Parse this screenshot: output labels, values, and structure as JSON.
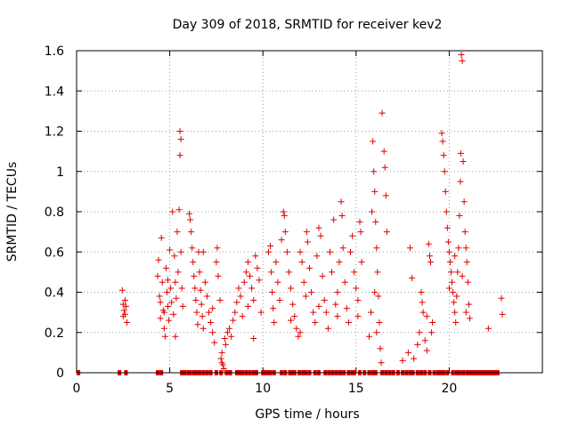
{
  "chart_data": {
    "type": "scatter",
    "title": "Day 309 of 2018, SRMTID for receiver kev2",
    "xlabel": "GPS time / hours",
    "ylabel": "SRMTID / TECUs",
    "xlim": [
      0,
      25
    ],
    "ylim": [
      0,
      1.6
    ],
    "xticks": [
      0,
      5,
      10,
      15,
      20
    ],
    "xtick_labels": [
      "0",
      "5",
      "10",
      "15",
      "20"
    ],
    "yticks": [
      0,
      0.2,
      0.4,
      0.6,
      0.8,
      1,
      1.2,
      1.4,
      1.6
    ],
    "ytick_labels": [
      "0",
      "0.2",
      "0.4",
      "0.6",
      "0.8",
      "1",
      "1.2",
      "1.4",
      "1.6"
    ],
    "grid": true,
    "marker": "+",
    "color": "#e00000",
    "series": [
      {
        "name": "SRMTID",
        "points": [
          [
            2.45,
            0.41
          ],
          [
            2.5,
            0.34
          ],
          [
            2.55,
            0.31
          ],
          [
            2.6,
            0.29
          ],
          [
            2.65,
            0.33
          ],
          [
            2.7,
            0.25
          ],
          [
            2.5,
            0.28
          ],
          [
            2.6,
            0.36
          ],
          [
            4.35,
            0.48
          ],
          [
            4.4,
            0.56
          ],
          [
            4.45,
            0.38
          ],
          [
            4.5,
            0.27
          ],
          [
            4.55,
            0.67
          ],
          [
            4.6,
            0.45
          ],
          [
            4.65,
            0.31
          ],
          [
            4.7,
            0.22
          ],
          [
            4.75,
            0.18
          ],
          [
            4.8,
            0.52
          ],
          [
            4.85,
            0.4
          ],
          [
            4.9,
            0.33
          ],
          [
            4.95,
            0.26
          ],
          [
            5.0,
            0.61
          ],
          [
            5.05,
            0.42
          ],
          [
            5.1,
            0.35
          ],
          [
            5.15,
            0.8
          ],
          [
            5.2,
            0.29
          ],
          [
            5.25,
            0.58
          ],
          [
            5.3,
            0.45
          ],
          [
            5.35,
            0.37
          ],
          [
            5.4,
            0.7
          ],
          [
            5.45,
            0.5
          ],
          [
            5.5,
            0.81
          ],
          [
            5.55,
            1.2
          ],
          [
            5.6,
            1.16
          ],
          [
            5.55,
            1.08
          ],
          [
            5.65,
            0.42
          ],
          [
            5.7,
            0.33
          ],
          [
            5.6,
            0.6
          ],
          [
            4.5,
            0.35
          ],
          [
            4.7,
            0.3
          ],
          [
            4.9,
            0.46
          ],
          [
            5.3,
            0.18
          ],
          [
            6.05,
            0.79
          ],
          [
            6.1,
            0.76
          ],
          [
            6.15,
            0.7
          ],
          [
            6.2,
            0.62
          ],
          [
            6.25,
            0.55
          ],
          [
            6.3,
            0.48
          ],
          [
            6.35,
            0.42
          ],
          [
            6.4,
            0.36
          ],
          [
            6.45,
            0.3
          ],
          [
            6.5,
            0.24
          ],
          [
            6.55,
            0.6
          ],
          [
            6.6,
            0.5
          ],
          [
            6.65,
            0.41
          ],
          [
            6.7,
            0.34
          ],
          [
            6.75,
            0.28
          ],
          [
            6.8,
            0.22
          ],
          [
            6.9,
            0.45
          ],
          [
            7.0,
            0.38
          ],
          [
            7.1,
            0.3
          ],
          [
            7.2,
            0.25
          ],
          [
            7.3,
            0.2
          ],
          [
            7.4,
            0.15
          ],
          [
            7.5,
            0.55
          ],
          [
            7.55,
            0.62
          ],
          [
            7.6,
            0.48
          ],
          [
            7.7,
            0.36
          ],
          [
            7.75,
            0.07
          ],
          [
            7.8,
            0.05
          ],
          [
            7.85,
            0.04
          ],
          [
            7.9,
            0.02
          ],
          [
            7.8,
            0.1
          ],
          [
            7.95,
            0.17
          ],
          [
            8.0,
            0.14
          ],
          [
            8.1,
            0.2
          ],
          [
            8.2,
            0.22
          ],
          [
            8.3,
            0.18
          ],
          [
            8.4,
            0.26
          ],
          [
            8.5,
            0.3
          ],
          [
            8.6,
            0.35
          ],
          [
            8.7,
            0.42
          ],
          [
            8.8,
            0.38
          ],
          [
            8.9,
            0.28
          ],
          [
            9.0,
            0.45
          ],
          [
            9.1,
            0.5
          ],
          [
            9.2,
            0.55
          ],
          [
            9.3,
            0.48
          ],
          [
            9.4,
            0.42
          ],
          [
            9.5,
            0.36
          ],
          [
            9.6,
            0.58
          ],
          [
            9.7,
            0.52
          ],
          [
            9.8,
            0.46
          ],
          [
            9.9,
            0.3
          ],
          [
            9.5,
            0.17
          ],
          [
            9.2,
            0.33
          ],
          [
            6.8,
            0.6
          ],
          [
            7.3,
            0.32
          ],
          [
            10.3,
            0.6
          ],
          [
            10.4,
            0.63
          ],
          [
            10.45,
            0.5
          ],
          [
            10.5,
            0.4
          ],
          [
            10.55,
            0.32
          ],
          [
            10.6,
            0.25
          ],
          [
            10.7,
            0.55
          ],
          [
            10.8,
            0.45
          ],
          [
            10.9,
            0.36
          ],
          [
            11.0,
            0.66
          ],
          [
            11.1,
            0.8
          ],
          [
            11.15,
            0.78
          ],
          [
            11.2,
            0.7
          ],
          [
            11.3,
            0.6
          ],
          [
            11.4,
            0.5
          ],
          [
            11.5,
            0.42
          ],
          [
            11.6,
            0.34
          ],
          [
            11.7,
            0.28
          ],
          [
            11.8,
            0.22
          ],
          [
            11.9,
            0.18
          ],
          [
            12.0,
            0.6
          ],
          [
            12.1,
            0.55
          ],
          [
            12.2,
            0.45
          ],
          [
            12.3,
            0.38
          ],
          [
            12.35,
            0.7
          ],
          [
            12.4,
            0.65
          ],
          [
            12.5,
            0.52
          ],
          [
            12.6,
            0.4
          ],
          [
            12.7,
            0.3
          ],
          [
            12.8,
            0.25
          ],
          [
            12.9,
            0.58
          ],
          [
            13.0,
            0.72
          ],
          [
            13.1,
            0.68
          ],
          [
            13.2,
            0.48
          ],
          [
            13.3,
            0.36
          ],
          [
            13.4,
            0.3
          ],
          [
            13.5,
            0.22
          ],
          [
            13.6,
            0.6
          ],
          [
            13.7,
            0.5
          ],
          [
            13.8,
            0.76
          ],
          [
            13.9,
            0.34
          ],
          [
            14.0,
            0.28
          ],
          [
            14.1,
            0.55
          ],
          [
            14.2,
            0.85
          ],
          [
            14.25,
            0.78
          ],
          [
            14.3,
            0.62
          ],
          [
            14.4,
            0.45
          ],
          [
            14.5,
            0.32
          ],
          [
            14.6,
            0.25
          ],
          [
            14.7,
            0.6
          ],
          [
            14.8,
            0.68
          ],
          [
            14.9,
            0.5
          ],
          [
            15.0,
            0.42
          ],
          [
            15.1,
            0.36
          ],
          [
            15.2,
            0.75
          ],
          [
            15.25,
            0.7
          ],
          [
            15.3,
            0.55
          ],
          [
            11.5,
            0.26
          ],
          [
            12.0,
            0.2
          ],
          [
            13.0,
            0.33
          ],
          [
            14.0,
            0.4
          ],
          [
            15.1,
            0.28
          ],
          [
            15.7,
            0.18
          ],
          [
            15.8,
            0.3
          ],
          [
            15.85,
            0.8
          ],
          [
            15.9,
            1.15
          ],
          [
            15.95,
            1.0
          ],
          [
            16.0,
            0.9
          ],
          [
            16.05,
            0.75
          ],
          [
            16.1,
            0.62
          ],
          [
            16.15,
            0.5
          ],
          [
            16.2,
            0.38
          ],
          [
            16.25,
            0.25
          ],
          [
            16.3,
            0.12
          ],
          [
            16.35,
            0.05
          ],
          [
            16.4,
            1.29
          ],
          [
            16.5,
            1.1
          ],
          [
            16.55,
            1.02
          ],
          [
            16.6,
            0.88
          ],
          [
            16.65,
            0.7
          ],
          [
            16.0,
            0.4
          ],
          [
            16.1,
            0.2
          ],
          [
            17.5,
            0.06
          ],
          [
            17.8,
            0.1
          ],
          [
            17.9,
            0.62
          ],
          [
            18.0,
            0.47
          ],
          [
            18.1,
            0.07
          ],
          [
            18.3,
            0.14
          ],
          [
            18.4,
            0.2
          ],
          [
            18.5,
            0.4
          ],
          [
            18.55,
            0.35
          ],
          [
            18.6,
            0.3
          ],
          [
            18.7,
            0.16
          ],
          [
            18.8,
            0.28
          ],
          [
            18.9,
            0.64
          ],
          [
            18.95,
            0.58
          ],
          [
            19.0,
            0.55
          ],
          [
            19.05,
            0.2
          ],
          [
            19.1,
            0.25
          ],
          [
            18.8,
            0.11
          ],
          [
            19.6,
            1.19
          ],
          [
            19.65,
            1.15
          ],
          [
            19.7,
            1.08
          ],
          [
            19.75,
            1.0
          ],
          [
            19.8,
            0.9
          ],
          [
            19.85,
            0.8
          ],
          [
            19.9,
            0.72
          ],
          [
            19.95,
            0.65
          ],
          [
            20.0,
            0.6
          ],
          [
            20.05,
            0.55
          ],
          [
            20.1,
            0.5
          ],
          [
            20.15,
            0.45
          ],
          [
            20.2,
            0.4
          ],
          [
            20.25,
            0.35
          ],
          [
            20.3,
            0.3
          ],
          [
            20.35,
            0.25
          ],
          [
            20.4,
            0.38
          ],
          [
            20.45,
            0.5
          ],
          [
            20.5,
            0.62
          ],
          [
            20.55,
            0.78
          ],
          [
            20.6,
            0.95
          ],
          [
            20.62,
            1.09
          ],
          [
            20.65,
            1.58
          ],
          [
            20.7,
            1.55
          ],
          [
            20.75,
            1.05
          ],
          [
            20.8,
            0.85
          ],
          [
            20.85,
            0.7
          ],
          [
            20.9,
            0.62
          ],
          [
            20.95,
            0.55
          ],
          [
            21.0,
            0.45
          ],
          [
            21.05,
            0.34
          ],
          [
            21.1,
            0.27
          ],
          [
            20.0,
            0.42
          ],
          [
            20.3,
            0.58
          ],
          [
            20.7,
            0.48
          ],
          [
            20.9,
            0.3
          ],
          [
            22.1,
            0.22
          ],
          [
            22.8,
            0.37
          ],
          [
            22.85,
            0.29
          ]
        ],
        "zero_points": [
          0.1,
          2.3,
          2.65,
          4.35,
          4.55,
          5.65,
          5.8,
          6.0,
          6.1,
          6.3,
          6.45,
          6.6,
          6.8,
          7.0,
          7.2,
          7.5,
          7.75,
          8.05,
          8.25,
          8.6,
          8.75,
          8.9,
          9.1,
          9.3,
          9.5,
          9.65,
          10.0,
          10.15,
          10.25,
          10.4,
          10.6,
          11.0,
          11.2,
          11.45,
          11.55,
          11.7,
          11.95,
          12.15,
          12.3,
          12.5,
          12.8,
          13.0,
          13.35,
          13.55,
          13.75,
          13.95,
          14.15,
          14.35,
          14.6,
          14.8,
          14.9,
          15.2,
          15.45,
          15.7,
          15.9,
          16.05,
          16.4,
          16.6,
          16.8,
          17.0,
          17.25,
          17.5,
          17.7,
          17.9,
          18.05,
          18.3,
          18.5,
          18.7,
          18.95,
          19.2,
          19.4,
          19.55,
          19.7,
          19.9,
          20.2,
          20.4,
          20.55,
          20.75,
          20.95,
          21.1,
          21.25,
          21.4,
          21.55,
          21.7,
          21.85,
          22.0,
          22.15,
          22.3,
          22.45,
          22.6
        ]
      }
    ]
  }
}
